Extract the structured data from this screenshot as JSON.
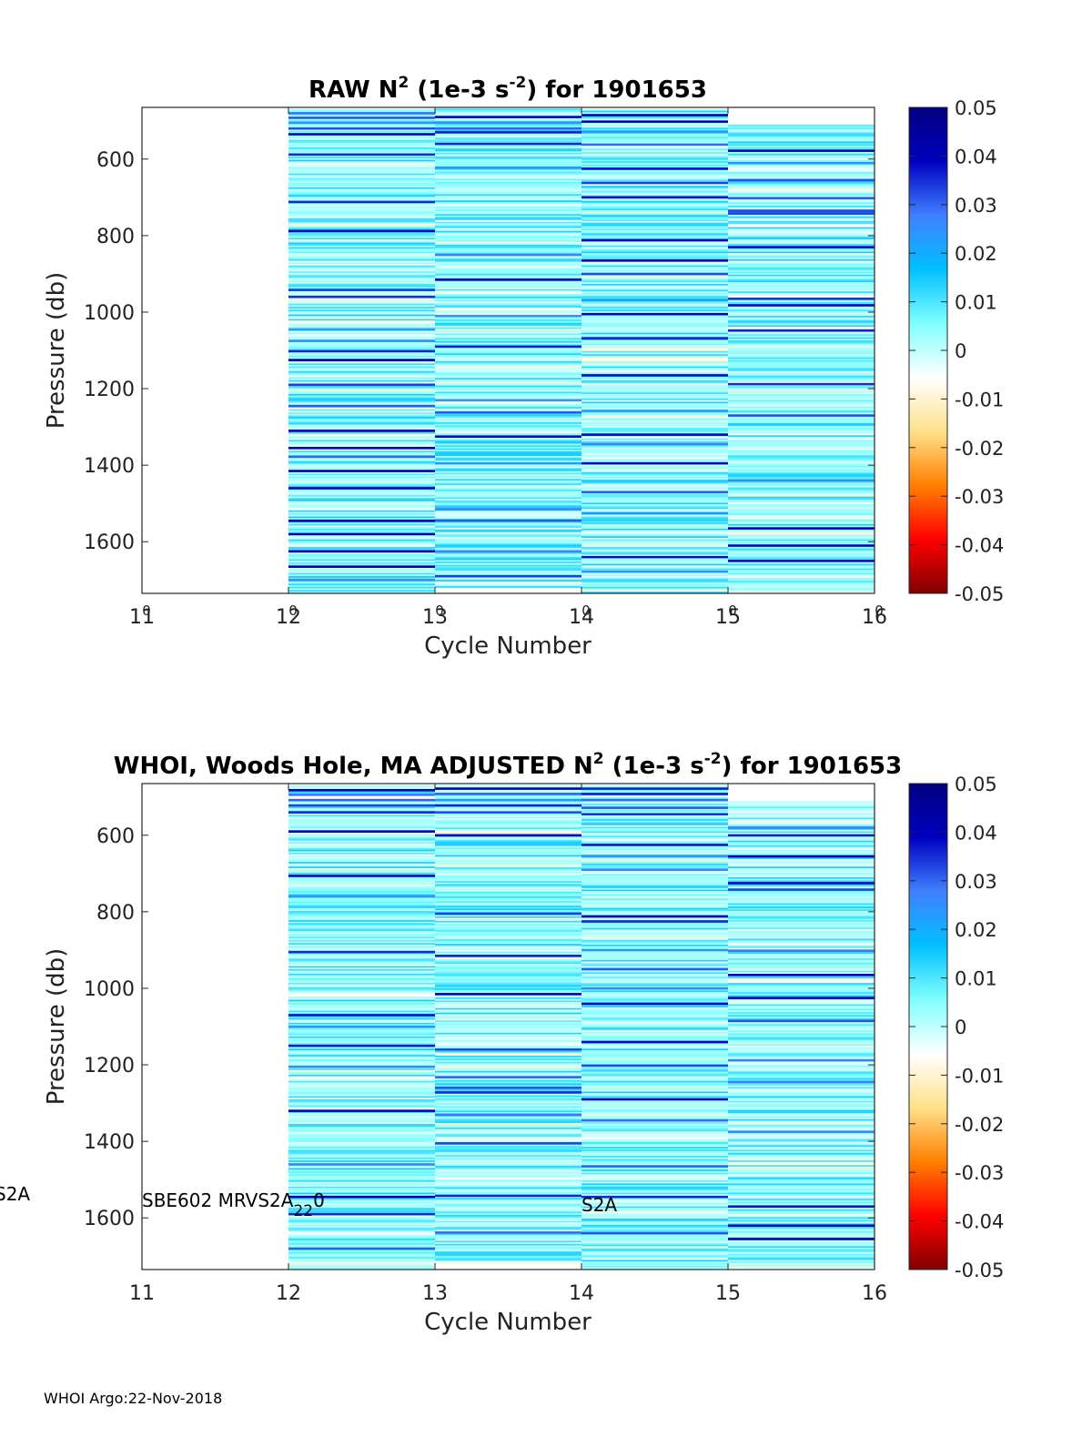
{
  "chart_data": [
    {
      "type": "heatmap",
      "title_prefix": "RAW N",
      "title_sup1": "2",
      "title_mid": " (1e-3 s",
      "title_sup2": "-2",
      "title_suffix": ") for 1901653",
      "xlabel": "Cycle Number",
      "ylabel": "Pressure (db)",
      "xlim": [
        11,
        16
      ],
      "ylim": [
        1735,
        465
      ],
      "y_reversed": true,
      "xticks": [
        11,
        12,
        13,
        14,
        15,
        16
      ],
      "yticks": [
        600,
        800,
        1000,
        1200,
        1400,
        1600
      ],
      "cycles": [
        {
          "cycle": 12,
          "p_min": 470,
          "p_max": 1735,
          "strong_layers": [
            480,
            492,
            505,
            520,
            535,
            588,
            712,
            788,
            942,
            960,
            1045,
            1075,
            1102,
            1125,
            1190,
            1245,
            1310,
            1355,
            1378,
            1415,
            1460,
            1545,
            1580,
            1625,
            1665,
            1700
          ]
        },
        {
          "cycle": 13,
          "p_min": 468,
          "p_max": 1720,
          "strong_layers": [
            490,
            505,
            520,
            530,
            560,
            622,
            850,
            915,
            1010,
            1090,
            1230,
            1262,
            1325,
            1395,
            1515,
            1545,
            1625,
            1690
          ]
        },
        {
          "cycle": 14,
          "p_min": 470,
          "p_max": 1735,
          "strong_layers": [
            485,
            502,
            528,
            562,
            625,
            662,
            700,
            812,
            865,
            900,
            968,
            1005,
            1068,
            1165,
            1258,
            1320,
            1345,
            1395,
            1470,
            1525,
            1640,
            1678
          ]
        },
        {
          "cycle": 15,
          "p_min": 510,
          "p_max": 1730,
          "strong_layers": [
            578,
            610,
            655,
            702,
            735,
            742,
            830,
            965,
            982,
            1048,
            1188,
            1270,
            1440,
            1565,
            1610,
            1650
          ]
        }
      ],
      "colorbar": {
        "min": -0.05,
        "max": 0.05,
        "tick_labels": [
          "0.05",
          "0.04",
          "0.03",
          "0.02",
          "0.01",
          "0",
          "-0.01",
          "-0.02",
          "-0.03",
          "-0.04",
          "-0.05"
        ],
        "colors": [
          "#800000",
          "#ff0000",
          "#ff8000",
          "#ffe08a",
          "#ffffff",
          "#80ffff",
          "#00c0ff",
          "#4080ff",
          "#0000c0",
          "#000080"
        ]
      },
      "annotations": {
        "x_overlap_labels": [
          "0",
          "0",
          "0",
          "0",
          "0",
          "0"
        ]
      }
    },
    {
      "type": "heatmap",
      "title_prefix": "WHOI, Woods Hole, MA  ADJUSTED N",
      "title_sup1": "2",
      "title_mid": " (1e-3 s",
      "title_sup2": "-2",
      "title_suffix": ") for 1901653",
      "xlabel": "Cycle Number",
      "ylabel": "Pressure (db)",
      "xlim": [
        11,
        16
      ],
      "ylim": [
        1735,
        465
      ],
      "y_reversed": true,
      "xticks": [
        11,
        12,
        13,
        14,
        15,
        16
      ],
      "yticks": [
        600,
        800,
        1000,
        1200,
        1400,
        1600
      ],
      "cycles": [
        {
          "cycle": 12,
          "p_min": 470,
          "p_max": 1735,
          "strong_layers": [
            482,
            494,
            508,
            522,
            540,
            590,
            706,
            760,
            905,
            1070,
            1100,
            1150,
            1205,
            1320,
            1460,
            1545,
            1590,
            1680
          ]
        },
        {
          "cycle": 13,
          "p_min": 468,
          "p_max": 1720,
          "strong_layers": [
            478,
            492,
            508,
            522,
            540,
            600,
            805,
            915,
            1015,
            1160,
            1232,
            1260,
            1272,
            1330,
            1405,
            1542,
            1638
          ]
        },
        {
          "cycle": 14,
          "p_min": 470,
          "p_max": 1735,
          "strong_layers": [
            478,
            492,
            508,
            528,
            545,
            625,
            655,
            690,
            812,
            825,
            900,
            950,
            1000,
            1040,
            1140,
            1202,
            1290,
            1345,
            1465,
            1545,
            1640
          ]
        },
        {
          "cycle": 15,
          "p_min": 510,
          "p_max": 1730,
          "strong_layers": [
            580,
            600,
            655,
            725,
            742,
            902,
            965,
            1025,
            1085,
            1188,
            1245,
            1375,
            1570,
            1620,
            1655
          ]
        }
      ],
      "colorbar": {
        "min": -0.05,
        "max": 0.05,
        "tick_labels": [
          "0.05",
          "0.04",
          "0.03",
          "0.02",
          "0.01",
          "0",
          "-0.01",
          "-0.02",
          "-0.03",
          "-0.04",
          "-0.05"
        ],
        "colors": [
          "#800000",
          "#ff0000",
          "#ff8000",
          "#ffe08a",
          "#ffffff",
          "#80ffff",
          "#00c0ff",
          "#4080ff",
          "#0000c0",
          "#000080"
        ]
      },
      "annotations": {
        "left_edge_label": "S2A",
        "sensor_label_main": "SBE602 MRVS2A",
        "sensor_label_sub": "22",
        "sensor_label_tail": "0",
        "sensor_label_cycle14": "S2A"
      }
    }
  ],
  "footer": {
    "text": "WHOI Argo:22-Nov-2018"
  }
}
